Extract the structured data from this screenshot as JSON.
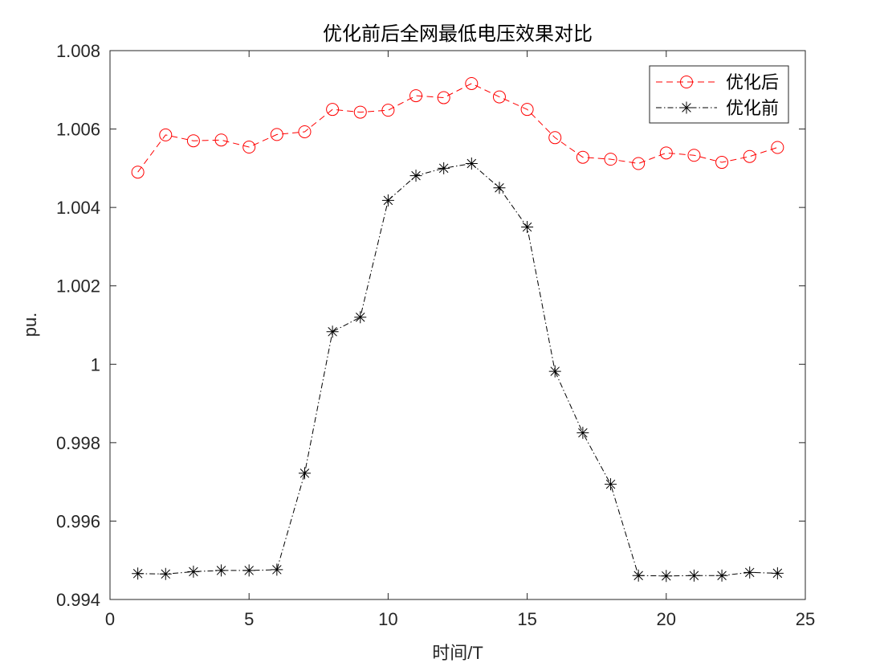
{
  "chart_data": {
    "type": "line",
    "title": "优化前后全网最低电压效果对比",
    "xlabel": "时间/T",
    "ylabel": "pu.",
    "xlim": [
      0,
      25
    ],
    "ylim": [
      0.994,
      1.008
    ],
    "xticks": [
      0,
      5,
      10,
      15,
      20,
      25
    ],
    "yticks": [
      0.994,
      0.996,
      0.998,
      1,
      1.002,
      1.004,
      1.006,
      1.008
    ],
    "xtick_labels": [
      "0",
      "5",
      "10",
      "15",
      "20",
      "25"
    ],
    "ytick_labels": [
      "0.994",
      "0.996",
      "0.998",
      "1",
      "1.002",
      "1.004",
      "1.006",
      "1.008"
    ],
    "grid": false,
    "legend_position": "top-right",
    "x": [
      1,
      2,
      3,
      4,
      5,
      6,
      7,
      8,
      9,
      10,
      11,
      12,
      13,
      14,
      15,
      16,
      17,
      18,
      19,
      20,
      21,
      22,
      23,
      24
    ],
    "series": [
      {
        "name": "优化后",
        "color": "#ff0000",
        "line_style": "dashed",
        "marker": "circle",
        "values": [
          1.0049,
          1.00585,
          1.0057,
          1.00572,
          1.00554,
          1.00586,
          1.00593,
          1.0065,
          1.00643,
          1.00648,
          1.00685,
          1.0068,
          1.00716,
          1.00682,
          1.0065,
          1.00578,
          1.00528,
          1.00523,
          1.00512,
          1.00539,
          1.00533,
          1.00515,
          1.0053,
          1.00553
        ]
      },
      {
        "name": "优化前",
        "color": "#000000",
        "line_style": "dash-dot",
        "marker": "asterisk",
        "values": [
          0.99466,
          0.99465,
          0.99471,
          0.99474,
          0.99474,
          0.99476,
          0.99722,
          1.00083,
          1.0012,
          1.00418,
          1.00481,
          1.005,
          1.00512,
          1.0045,
          1.0035,
          0.99982,
          0.99825,
          0.99694,
          0.99461,
          0.9946,
          0.99461,
          0.99461,
          0.99469,
          0.99467
        ]
      }
    ]
  }
}
